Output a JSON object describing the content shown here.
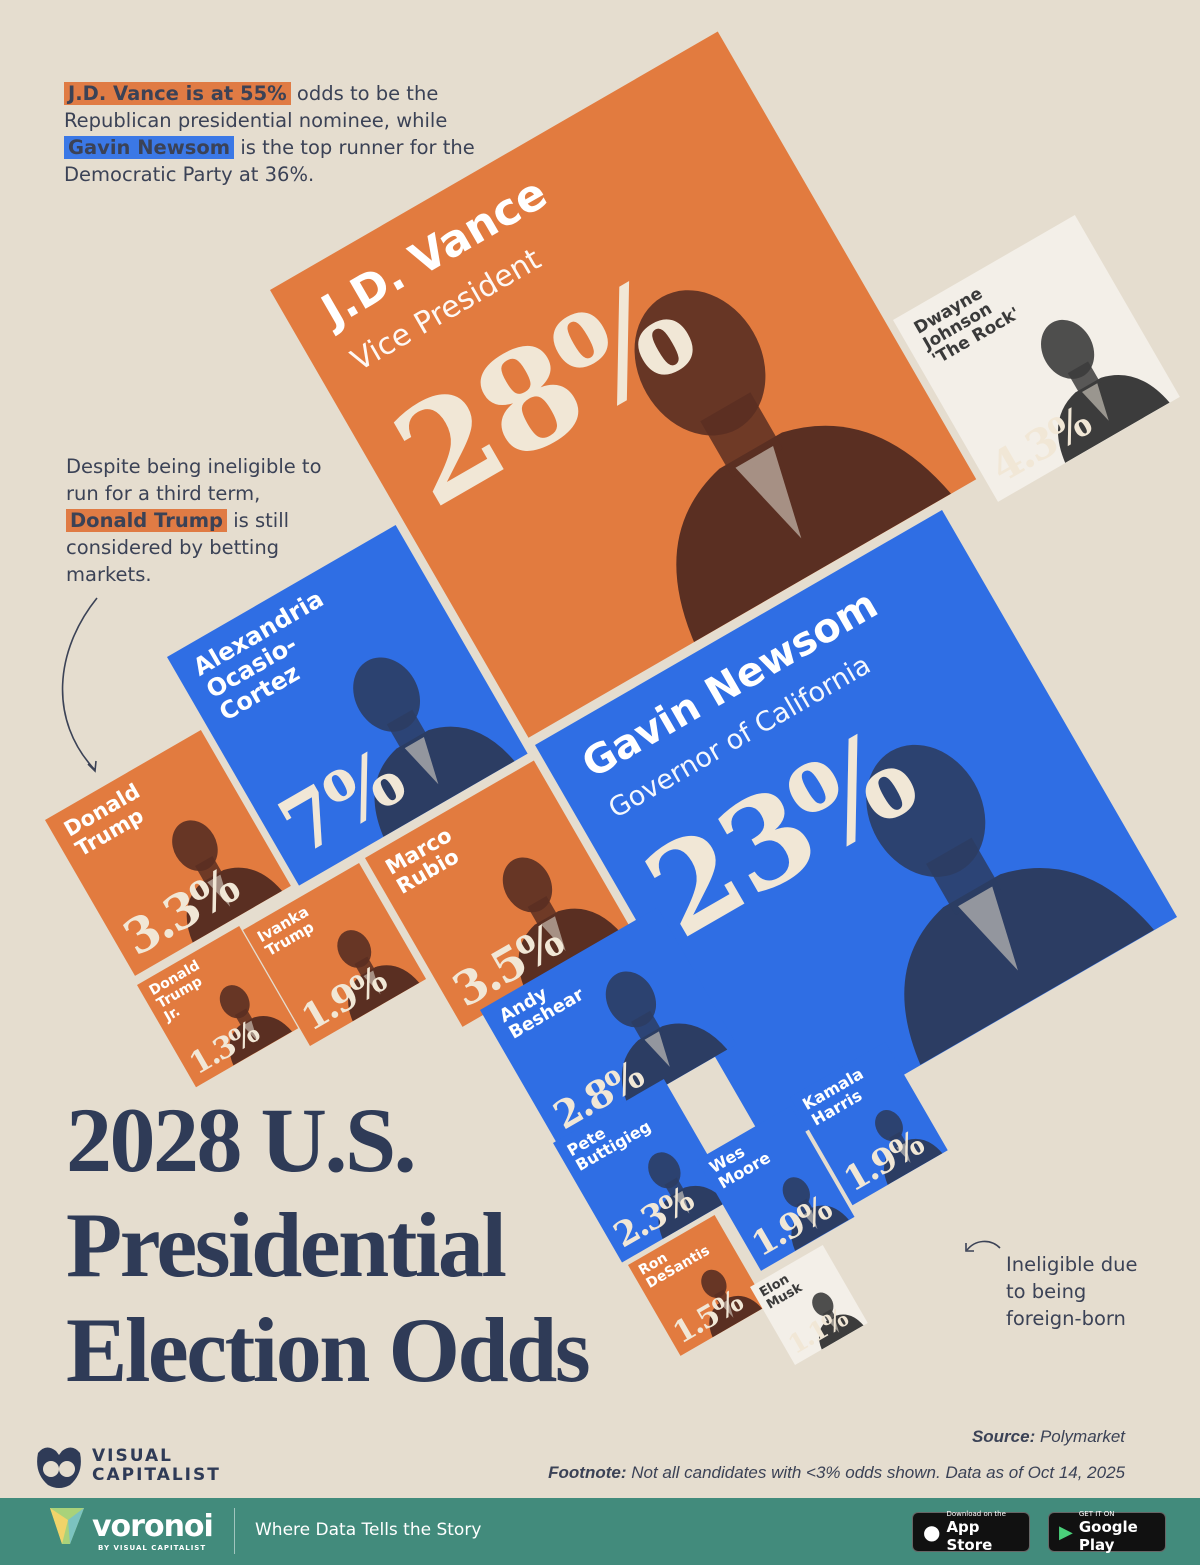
{
  "colors": {
    "republican": "#e27b3f",
    "democrat": "#2f6ee4",
    "independent": "#f3efe8",
    "background": "#e5ddcf",
    "title": "#2f3b57",
    "footer": "#428b7c"
  },
  "intro_note": {
    "hl1": "J.D. Vance is at 55%",
    "t1": " odds to be the Republican presidential nominee, while ",
    "hl2": "Gavin Newsom",
    "t2": " is the top runner for the Democratic Party at 36%."
  },
  "trump_note": {
    "t1": "Despite being ineligible to run for a third term, ",
    "hl": "Donald Trump",
    "t2": " is still considered by betting markets."
  },
  "musk_note": "Ineligible due to being foreign-born",
  "title": {
    "line1": "2028 U.S.",
    "line2": "Presidential",
    "line3": "Election Odds"
  },
  "source": {
    "label": "Source:",
    "value": "Polymarket"
  },
  "footnote": {
    "label": "Footnote:",
    "value": "Not all candidates with <3% odds shown. Data as of Oct 14, 2025"
  },
  "brand": {
    "logo_line1": "VISUAL",
    "logo_line2": "CAPITALIST",
    "voronoi": "voronoi",
    "voronoi_by": "BY VISUAL CAPITALIST",
    "tagline": "Where Data Tells the Story",
    "appstore_small": "Download on the",
    "appstore": "App Store",
    "gplay_small": "GET IT ON",
    "gplay": "Google Play"
  },
  "tiles": [
    {
      "name": "J.D. Vance",
      "subtitle": "Vice President",
      "pct": "28%",
      "party": "rep"
    },
    {
      "name": "Dwayne Johnson 'The Rock'",
      "subtitle": "",
      "pct": "4.3%",
      "party": "ind"
    },
    {
      "name": "Alexandria Ocasio-Cortez",
      "subtitle": "",
      "pct": "7%",
      "party": "dem"
    },
    {
      "name": "Gavin Newsom",
      "subtitle": "Governor of California",
      "pct": "23%",
      "party": "dem"
    },
    {
      "name": "Donald Trump",
      "subtitle": "",
      "pct": "3.3%",
      "party": "rep"
    },
    {
      "name": "Marco Rubio",
      "subtitle": "",
      "pct": "3.5%",
      "party": "rep"
    },
    {
      "name": "Ivanka Trump",
      "subtitle": "",
      "pct": "1.9%",
      "party": "rep"
    },
    {
      "name": "Donald Trump Jr.",
      "subtitle": "",
      "pct": "1.3%",
      "party": "rep"
    },
    {
      "name": "Andy Beshear",
      "subtitle": "",
      "pct": "2.8%",
      "party": "dem"
    },
    {
      "name": "Pete Buttigieg",
      "subtitle": "",
      "pct": "2.3%",
      "party": "dem"
    },
    {
      "name": "Wes Moore",
      "subtitle": "",
      "pct": "1.9%",
      "party": "dem"
    },
    {
      "name": "Kamala Harris",
      "subtitle": "",
      "pct": "1.9%",
      "party": "dem"
    },
    {
      "name": "Ron DeSantis",
      "subtitle": "",
      "pct": "1.5%",
      "party": "rep"
    },
    {
      "name": "Elon Musk",
      "subtitle": "",
      "pct": "1.1%",
      "party": "ind"
    }
  ],
  "chart_data": {
    "type": "treemap",
    "title": "2028 U.S. Presidential Election Odds",
    "unit": "%",
    "categories": [
      "J.D. Vance",
      "Gavin Newsom",
      "Alexandria Ocasio-Cortez",
      "Dwayne Johnson 'The Rock'",
      "Marco Rubio",
      "Donald Trump",
      "Andy Beshear",
      "Pete Buttigieg",
      "Ivanka Trump",
      "Wes Moore",
      "Kamala Harris",
      "Ron DeSantis",
      "Donald Trump Jr.",
      "Elon Musk"
    ],
    "values": [
      28,
      23,
      7,
      4.3,
      3.5,
      3.3,
      2.8,
      2.3,
      1.9,
      1.9,
      1.9,
      1.5,
      1.3,
      1.1
    ],
    "groups": [
      "Republican",
      "Democrat",
      "Democrat",
      "Independent",
      "Republican",
      "Republican",
      "Democrat",
      "Democrat",
      "Republican",
      "Democrat",
      "Democrat",
      "Republican",
      "Republican",
      "Independent"
    ]
  }
}
